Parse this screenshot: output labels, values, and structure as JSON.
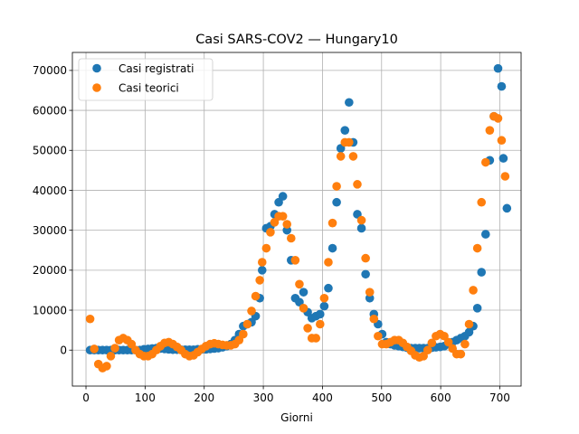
{
  "chart_data": {
    "type": "scatter",
    "title": "Casi SARS-COV2 — Hungary10",
    "xlabel": "Giorni",
    "ylabel": "",
    "xlim": [
      -23,
      736
    ],
    "ylim": [
      -9000,
      74500
    ],
    "xticks": [
      0,
      100,
      200,
      300,
      400,
      500,
      600,
      700
    ],
    "yticks": [
      0,
      10000,
      20000,
      30000,
      40000,
      50000,
      60000,
      70000
    ],
    "grid": true,
    "legend": "top-left",
    "colors": {
      "registrati": "#1f77b4",
      "teorici": "#ff7f0e"
    },
    "series": [
      {
        "name": "Casi registrati",
        "color": "#1f77b4",
        "points": [
          [
            7,
            0
          ],
          [
            14,
            0
          ],
          [
            21,
            0
          ],
          [
            28,
            0
          ],
          [
            35,
            0
          ],
          [
            42,
            0
          ],
          [
            49,
            0
          ],
          [
            56,
            0
          ],
          [
            63,
            0
          ],
          [
            70,
            0
          ],
          [
            77,
            0
          ],
          [
            84,
            0
          ],
          [
            91,
            0
          ],
          [
            98,
            200
          ],
          [
            105,
            300
          ],
          [
            112,
            400
          ],
          [
            119,
            500
          ],
          [
            126,
            400
          ],
          [
            133,
            300
          ],
          [
            140,
            200
          ],
          [
            147,
            100
          ],
          [
            154,
            100
          ],
          [
            161,
            100
          ],
          [
            168,
            100
          ],
          [
            175,
            100
          ],
          [
            182,
            100
          ],
          [
            189,
            200
          ],
          [
            196,
            200
          ],
          [
            203,
            200
          ],
          [
            210,
            300
          ],
          [
            217,
            400
          ],
          [
            224,
            500
          ],
          [
            231,
            700
          ],
          [
            238,
            1000
          ],
          [
            245,
            1500
          ],
          [
            252,
            2500
          ],
          [
            259,
            4000
          ],
          [
            266,
            6000
          ],
          [
            273,
            6500
          ],
          [
            280,
            7000
          ],
          [
            287,
            8500
          ],
          [
            294,
            13000
          ],
          [
            298,
            20000
          ],
          [
            305,
            30500
          ],
          [
            312,
            31000
          ],
          [
            319,
            34000
          ],
          [
            326,
            37000
          ],
          [
            333,
            38500
          ],
          [
            340,
            30000
          ],
          [
            347,
            22500
          ],
          [
            354,
            13000
          ],
          [
            361,
            12000
          ],
          [
            368,
            14500
          ],
          [
            375,
            9500
          ],
          [
            382,
            8000
          ],
          [
            389,
            8500
          ],
          [
            396,
            9000
          ],
          [
            403,
            11000
          ],
          [
            410,
            15500
          ],
          [
            417,
            25500
          ],
          [
            424,
            37000
          ],
          [
            431,
            50500
          ],
          [
            438,
            55000
          ],
          [
            445,
            62000
          ],
          [
            452,
            52000
          ],
          [
            459,
            34000
          ],
          [
            466,
            30500
          ],
          [
            473,
            19000
          ],
          [
            480,
            13000
          ],
          [
            487,
            9000
          ],
          [
            494,
            6500
          ],
          [
            501,
            4000
          ],
          [
            508,
            2000
          ],
          [
            515,
            1500
          ],
          [
            522,
            1200
          ],
          [
            529,
            1000
          ],
          [
            536,
            800
          ],
          [
            543,
            600
          ],
          [
            550,
            500
          ],
          [
            557,
            500
          ],
          [
            564,
            500
          ],
          [
            571,
            500
          ],
          [
            578,
            500
          ],
          [
            585,
            600
          ],
          [
            592,
            700
          ],
          [
            599,
            800
          ],
          [
            606,
            1000
          ],
          [
            613,
            1500
          ],
          [
            620,
            2000
          ],
          [
            627,
            2500
          ],
          [
            634,
            3000
          ],
          [
            641,
            3500
          ],
          [
            648,
            4500
          ],
          [
            655,
            6000
          ],
          [
            662,
            10500
          ],
          [
            669,
            19500
          ],
          [
            676,
            29000
          ],
          [
            683,
            47500
          ],
          [
            690,
            58500
          ],
          [
            697,
            70500
          ],
          [
            703,
            66000
          ],
          [
            706,
            48000
          ],
          [
            712,
            35500
          ]
        ]
      },
      {
        "name": "Casi teorici",
        "color": "#ff7f0e",
        "points": [
          [
            7,
            7800
          ],
          [
            14,
            300
          ],
          [
            21,
            -3500
          ],
          [
            28,
            -4500
          ],
          [
            35,
            -4000
          ],
          [
            42,
            -1500
          ],
          [
            49,
            500
          ],
          [
            56,
            2500
          ],
          [
            63,
            3000
          ],
          [
            70,
            2500
          ],
          [
            77,
            1500
          ],
          [
            84,
            0
          ],
          [
            91,
            -1000
          ],
          [
            98,
            -1500
          ],
          [
            105,
            -1500
          ],
          [
            112,
            -1000
          ],
          [
            119,
            0
          ],
          [
            126,
            1000
          ],
          [
            133,
            1800
          ],
          [
            140,
            2000
          ],
          [
            147,
            1500
          ],
          [
            154,
            800
          ],
          [
            161,
            0
          ],
          [
            168,
            -1000
          ],
          [
            175,
            -1500
          ],
          [
            182,
            -1300
          ],
          [
            189,
            -500
          ],
          [
            196,
            300
          ],
          [
            203,
            1000
          ],
          [
            210,
            1500
          ],
          [
            217,
            1700
          ],
          [
            224,
            1500
          ],
          [
            231,
            1300
          ],
          [
            238,
            1200
          ],
          [
            245,
            1200
          ],
          [
            252,
            1500
          ],
          [
            259,
            2500
          ],
          [
            266,
            4000
          ],
          [
            273,
            6500
          ],
          [
            280,
            9800
          ],
          [
            287,
            13500
          ],
          [
            294,
            17500
          ],
          [
            298,
            22000
          ],
          [
            305,
            25500
          ],
          [
            312,
            29500
          ],
          [
            319,
            32000
          ],
          [
            326,
            33500
          ],
          [
            333,
            33500
          ],
          [
            340,
            31500
          ],
          [
            347,
            28000
          ],
          [
            354,
            22500
          ],
          [
            361,
            16500
          ],
          [
            368,
            10500
          ],
          [
            375,
            5500
          ],
          [
            382,
            3000
          ],
          [
            389,
            3000
          ],
          [
            396,
            6500
          ],
          [
            403,
            13000
          ],
          [
            410,
            22000
          ],
          [
            417,
            31800
          ],
          [
            424,
            41000
          ],
          [
            431,
            48500
          ],
          [
            438,
            52000
          ],
          [
            445,
            52000
          ],
          [
            452,
            48500
          ],
          [
            459,
            41500
          ],
          [
            466,
            32500
          ],
          [
            473,
            23000
          ],
          [
            480,
            14500
          ],
          [
            487,
            7800
          ],
          [
            494,
            3500
          ],
          [
            501,
            1500
          ],
          [
            508,
            1500
          ],
          [
            515,
            2000
          ],
          [
            522,
            2500
          ],
          [
            529,
            2500
          ],
          [
            536,
            1800
          ],
          [
            543,
            800
          ],
          [
            550,
            -200
          ],
          [
            557,
            -1300
          ],
          [
            564,
            -1800
          ],
          [
            571,
            -1500
          ],
          [
            578,
            0
          ],
          [
            585,
            1800
          ],
          [
            592,
            3500
          ],
          [
            599,
            4000
          ],
          [
            606,
            3500
          ],
          [
            613,
            2000
          ],
          [
            620,
            400
          ],
          [
            627,
            -1000
          ],
          [
            634,
            -1000
          ],
          [
            641,
            1500
          ],
          [
            648,
            6500
          ],
          [
            655,
            15000
          ],
          [
            662,
            25500
          ],
          [
            669,
            37000
          ],
          [
            676,
            47000
          ],
          [
            683,
            55000
          ],
          [
            690,
            58500
          ],
          [
            697,
            58000
          ],
          [
            703,
            52500
          ],
          [
            709,
            43500
          ]
        ]
      }
    ]
  }
}
